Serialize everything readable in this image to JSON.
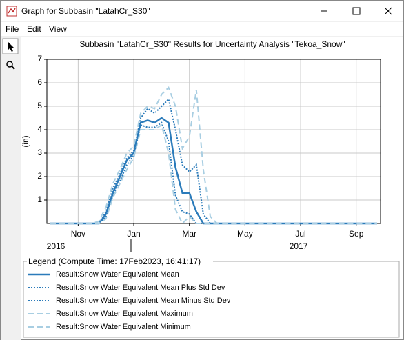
{
  "window": {
    "title": "Graph for Subbasin \"LatahCr_S30\"",
    "menu": [
      "File",
      "Edit",
      "View"
    ]
  },
  "chart_data": {
    "type": "line",
    "title": "Subbasin \"LatahCr_S30\" Results for Uncertainty Analysis \"Tekoa_Snow\"",
    "y_label": "(in)",
    "categories": [
      null,
      null,
      null,
      null,
      "Nov",
      null,
      null,
      null,
      null,
      null,
      null,
      null,
      "Jan",
      null,
      null,
      null,
      null,
      null,
      null,
      null,
      "Mar",
      null,
      null,
      null,
      null,
      null,
      null,
      null,
      "May",
      null,
      null,
      null,
      null,
      null,
      null,
      null,
      "Jul",
      null,
      null,
      null,
      null,
      null,
      null,
      null,
      "Sep",
      null,
      null,
      null
    ],
    "year_labels": [
      "2016",
      "2017"
    ],
    "ylim": [
      0,
      7
    ],
    "yticks": [
      1,
      2,
      3,
      4,
      5,
      6,
      7
    ],
    "grid": true,
    "legend_title": "Legend (Compute Time: 17Feb2023, 16:41:17)",
    "series": [
      {
        "name": "Result:Snow Water Equivalent Mean",
        "color": "#2b7bba",
        "style": "solid",
        "values": [
          0,
          0,
          0,
          0,
          0,
          0,
          0,
          0,
          0.4,
          1.3,
          2.0,
          2.7,
          3.0,
          4.3,
          4.4,
          4.3,
          4.5,
          4.3,
          2.4,
          1.3,
          1.3,
          0.5,
          0,
          0,
          0,
          0,
          0,
          0,
          0,
          0,
          0,
          0,
          0,
          0,
          0,
          0,
          0,
          0,
          0,
          0,
          0,
          0,
          0,
          0,
          0,
          0,
          0,
          0
        ]
      },
      {
        "name": "Result:Snow Water Equivalent Mean Plus Std Dev",
        "color": "#2b7bba",
        "style": "dotted",
        "values": [
          0,
          0,
          0,
          0,
          0,
          0,
          0,
          0,
          0.5,
          1.5,
          2.1,
          2.8,
          3.1,
          4.5,
          4.9,
          4.7,
          5.0,
          5.3,
          4.0,
          2.5,
          2.2,
          2.5,
          0.4,
          0,
          0,
          0,
          0,
          0,
          0,
          0,
          0,
          0,
          0,
          0,
          0,
          0,
          0,
          0,
          0,
          0,
          0,
          0,
          0,
          0,
          0,
          0,
          0,
          0
        ]
      },
      {
        "name": "Result:Snow Water Equivalent Mean Minus Std Dev",
        "color": "#2b7bba",
        "style": "dotted",
        "values": [
          0,
          0,
          0,
          0,
          0,
          0,
          0,
          0,
          0.3,
          1.2,
          1.8,
          2.5,
          2.9,
          4.2,
          4.1,
          4.1,
          4.3,
          3.5,
          1.2,
          0.5,
          0.4,
          0,
          0,
          0,
          0,
          0,
          0,
          0,
          0,
          0,
          0,
          0,
          0,
          0,
          0,
          0,
          0,
          0,
          0,
          0,
          0,
          0,
          0,
          0,
          0,
          0,
          0,
          0
        ]
      },
      {
        "name": "Result:Snow Water Equivalent Maximum",
        "color": "#a8cee2",
        "style": "dashed",
        "values": [
          0,
          0,
          0,
          0,
          0,
          0,
          0,
          0.1,
          0.7,
          1.7,
          2.3,
          3.0,
          3.3,
          4.7,
          5.0,
          4.9,
          5.5,
          5.8,
          5.0,
          3.2,
          3.7,
          5.7,
          2.3,
          0.3,
          0,
          0,
          0,
          0,
          0,
          0,
          0,
          0,
          0,
          0,
          0,
          0,
          0,
          0,
          0,
          0,
          0,
          0,
          0,
          0,
          0,
          0,
          0,
          0
        ]
      },
      {
        "name": "Result:Snow Water Equivalent Minimum",
        "color": "#a8cee2",
        "style": "dashed",
        "values": [
          0,
          0,
          0,
          0,
          0,
          0,
          0,
          0,
          0.2,
          1.1,
          1.7,
          2.3,
          2.8,
          4.0,
          4.0,
          4.0,
          4.2,
          3.0,
          0.6,
          0,
          0.3,
          0,
          0,
          0,
          0,
          0,
          0,
          0,
          0,
          0,
          0,
          0,
          0,
          0,
          0,
          0,
          0,
          0,
          0,
          0,
          0,
          0,
          0,
          0,
          0,
          0,
          0,
          0
        ]
      }
    ]
  }
}
